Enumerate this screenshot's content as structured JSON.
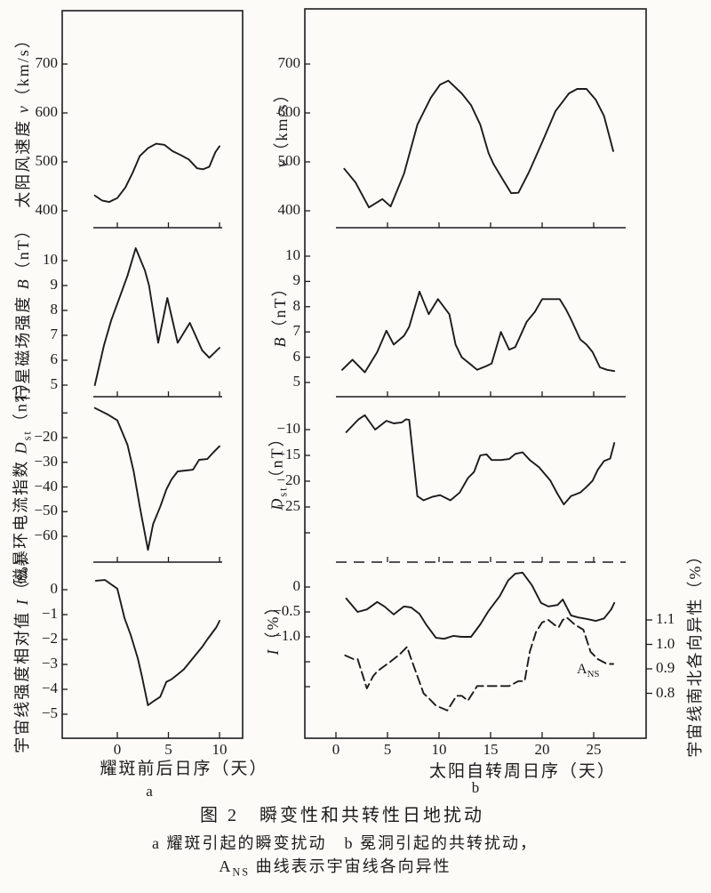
{
  "figure": {
    "ink": "#1b1b1b",
    "paper": "#fcfbf7",
    "caption": {
      "line1_parts": [
        {
          "text": "图 2　瞬变性和共转性日地扰动"
        }
      ],
      "line2_parts": [
        {
          "text": "a 耀斑引起的瞬变扰动　b 冕洞引起的共转扰动，"
        }
      ],
      "line3_parts": [
        {
          "text": "A"
        },
        {
          "text": "NS",
          "sub": true
        },
        {
          "text": " 曲线表示宇宙线各向异性"
        }
      ]
    }
  },
  "chart_data": [
    {
      "id": "a1",
      "type": "line",
      "ylabel_parts": [
        {
          "text": "太阳风速度 "
        },
        {
          "text": "v",
          "italic": true
        },
        {
          "text": "（km/s）"
        }
      ],
      "ytick_values": [
        400,
        500,
        600,
        700
      ],
      "ytick_labels": [
        "400",
        "500",
        "600",
        "700"
      ],
      "ylim": [
        370,
        800
      ],
      "xlim": [
        -3,
        11
      ],
      "grid": false,
      "series": [
        {
          "name": "solar-wind-speed",
          "style": "solid",
          "x": [
            -2.2,
            -1.5,
            -0.8,
            0,
            0.8,
            1.5,
            2.2,
            3,
            3.8,
            4.6,
            5.4,
            6.2,
            7,
            7.8,
            8.4,
            9,
            9.6,
            10
          ],
          "y": [
            431,
            421,
            418,
            426,
            448,
            478,
            512,
            528,
            537,
            535,
            522,
            514,
            505,
            487,
            485,
            490,
            520,
            532
          ]
        }
      ]
    },
    {
      "id": "a2",
      "type": "line",
      "ylabel_parts": [
        {
          "text": "行星磁场强度 "
        },
        {
          "text": "B",
          "italic": true
        },
        {
          "text": "（nT）"
        }
      ],
      "ytick_values": [
        5,
        6,
        7,
        8,
        9,
        10
      ],
      "ytick_labels": [
        "5",
        "6",
        "7",
        "8",
        "9",
        "10"
      ],
      "ylim": [
        4.3,
        11.3
      ],
      "xlim": [
        -3,
        11
      ],
      "grid": false,
      "series": [
        {
          "name": "imf-strength",
          "style": "solid",
          "x": [
            -2.2,
            -1.3,
            -0.6,
            0.3,
            1,
            1.8,
            2.7,
            3.1,
            4,
            4.9,
            5.9,
            7.1,
            8.3,
            9,
            10
          ],
          "y": [
            5.0,
            6.6,
            7.6,
            8.6,
            9.4,
            10.5,
            9.6,
            9.0,
            6.7,
            8.5,
            6.7,
            7.5,
            6.4,
            6.1,
            6.5
          ]
        }
      ]
    },
    {
      "id": "a3",
      "type": "line",
      "ylabel_parts": [
        {
          "text": "磁暴环电流指数 "
        },
        {
          "text": "D",
          "italic": true
        },
        {
          "text": "st",
          "sub": true
        },
        {
          "text": "（nT）"
        }
      ],
      "ytick_values": [
        -20,
        -30,
        -40,
        -50,
        -60
      ],
      "ytick_labels": [
        "−20",
        "−30",
        "−40",
        "−50",
        "−60"
      ],
      "yticks_unlabeled": [
        -10
      ],
      "ylim": [
        -70,
        -3
      ],
      "xlim": [
        -3,
        11
      ],
      "grid": false,
      "series": [
        {
          "name": "dst-index",
          "style": "solid",
          "x": [
            -2.2,
            -1,
            0,
            1,
            1.6,
            2.2,
            3,
            3.5,
            4.2,
            4.8,
            5.3,
            5.9,
            7.4,
            8,
            8.8,
            9.4,
            10
          ],
          "y": [
            -8,
            -10.5,
            -13,
            -23,
            -33.7,
            -48,
            -65.5,
            -55,
            -48,
            -41,
            -37,
            -33.7,
            -33,
            -29,
            -28.7,
            -26,
            -23.5
          ]
        }
      ]
    },
    {
      "id": "a4",
      "type": "line",
      "ylabel_parts": [
        {
          "text": "宇宙线强度相对值 "
        },
        {
          "text": "I",
          "italic": true
        },
        {
          "text": "（%）"
        }
      ],
      "ytick_values": [
        0,
        -1,
        -2,
        -3,
        -4,
        -5
      ],
      "ytick_labels": [
        "0",
        "−1",
        "−2",
        "−3",
        "−4",
        "−5"
      ],
      "ylim": [
        -6,
        1.1
      ],
      "xlim": [
        -3,
        11
      ],
      "grid": false,
      "xlabel": "耀斑前后日序（天）",
      "xtick_values": [
        0,
        5,
        10
      ],
      "xtick_labels": [
        "0",
        "5",
        "10"
      ],
      "panel_letter": "a",
      "series": [
        {
          "name": "cosmic-ray-intensity",
          "style": "solid",
          "x": [
            -2.1,
            -1.2,
            0,
            0.7,
            1.3,
            2,
            2.4,
            3,
            3.6,
            4.2,
            4.8,
            5.3,
            5.9,
            6.5,
            7.4,
            8.3,
            8.8,
            9.7,
            10
          ],
          "y": [
            0.36,
            0.39,
            0.04,
            -1.14,
            -1.8,
            -2.75,
            -3.46,
            -4.64,
            -4.46,
            -4.3,
            -3.7,
            -3.6,
            -3.4,
            -3.2,
            -2.75,
            -2.3,
            -2.0,
            -1.5,
            -1.25
          ]
        }
      ]
    },
    {
      "id": "b1",
      "type": "line",
      "ylabel_parts": [
        {
          "text": "v",
          "italic": true
        },
        {
          "text": "（km/s）"
        }
      ],
      "ytick_values": [
        400,
        500,
        600,
        700
      ],
      "ytick_labels": [
        "400",
        "500",
        "600",
        "700"
      ],
      "ylim": [
        370,
        810
      ],
      "xlim": [
        -1,
        29
      ],
      "grid": false,
      "series": [
        {
          "name": "solar-wind-speed",
          "style": "solid",
          "x": [
            0.8,
            1.9,
            3.2,
            4.5,
            5.3,
            6.6,
            7.9,
            9.2,
            10.1,
            10.9,
            12.2,
            13.1,
            14,
            14.8,
            15.3,
            16.1,
            17,
            17.7,
            18.7,
            20,
            21.3,
            22.6,
            23.4,
            24.3,
            25.2,
            26,
            26.9
          ],
          "y": [
            486,
            458,
            407,
            424,
            409,
            476,
            576,
            631,
            658,
            666,
            640,
            616,
            576,
            518,
            495,
            467,
            436,
            437,
            478,
            540,
            604,
            640,
            649,
            649,
            627,
            594,
            522
          ]
        }
      ]
    },
    {
      "id": "b2",
      "type": "line",
      "ylabel_parts": [
        {
          "text": "B",
          "italic": true
        },
        {
          "text": "（nT）"
        }
      ],
      "ytick_values": [
        5,
        6,
        7,
        8,
        9,
        10
      ],
      "ytick_labels": [
        "5",
        "6",
        "7",
        "8",
        "9",
        "10"
      ],
      "ylim": [
        4.3,
        11.3
      ],
      "xlim": [
        -1,
        29
      ],
      "grid": false,
      "series": [
        {
          "name": "imf-strength",
          "style": "solid",
          "x": [
            0.6,
            1.6,
            2.8,
            4,
            4.9,
            5.6,
            6.6,
            7.1,
            8.1,
            9,
            9.9,
            11,
            11.6,
            12.2,
            13.1,
            13.7,
            14.6,
            15.1,
            16,
            16.8,
            17.4,
            18.5,
            19.3,
            20,
            21.7,
            22.3,
            22.8,
            23.7,
            24.3,
            24.9,
            25.6,
            26.3,
            27
          ],
          "y": [
            5.5,
            5.9,
            5.4,
            6.2,
            7.05,
            6.5,
            6.85,
            7.2,
            8.6,
            7.7,
            8.3,
            7.7,
            6.5,
            6.0,
            5.7,
            5.5,
            5.65,
            5.75,
            7.0,
            6.3,
            6.4,
            7.4,
            7.8,
            8.3,
            8.3,
            7.9,
            7.5,
            6.7,
            6.5,
            6.2,
            5.6,
            5.5,
            5.45
          ]
        }
      ]
    },
    {
      "id": "b3",
      "type": "line",
      "ylabel_parts": [
        {
          "text": "D",
          "italic": true
        },
        {
          "text": "st",
          "sub": true
        },
        {
          "text": "（nT）"
        }
      ],
      "ytick_values": [
        -10,
        -15,
        -20,
        -25
      ],
      "ytick_labels": [
        "−10",
        "−15",
        "−20",
        "−25"
      ],
      "yticks_unlabeled": [
        -30
      ],
      "ylim": [
        -35,
        -4
      ],
      "xlim": [
        -1,
        29
      ],
      "grid": false,
      "series": [
        {
          "name": "dst-index",
          "style": "solid",
          "x": [
            1,
            2.2,
            2.8,
            3.8,
            4.9,
            5.6,
            6.4,
            6.8,
            7.1,
            7.9,
            8.5,
            9.4,
            10.1,
            11.1,
            12,
            12.8,
            13.4,
            14,
            14.6,
            15.1,
            16,
            16.8,
            17.4,
            18.1,
            18.8,
            19.7,
            20.8,
            21.5,
            22.1,
            22.8,
            23.7,
            24.3,
            24.9,
            25.4,
            26,
            26.6,
            27
          ],
          "y": [
            -10.5,
            -8,
            -7.2,
            -10,
            -8.3,
            -8.8,
            -8.6,
            -8,
            -8.1,
            -22.9,
            -23.7,
            -23,
            -22.7,
            -23.7,
            -22.2,
            -19.4,
            -18.2,
            -15,
            -14.8,
            -15.9,
            -15.9,
            -15.7,
            -14.7,
            -14.4,
            -15.9,
            -17.3,
            -19.9,
            -22.5,
            -24.5,
            -22.9,
            -22.2,
            -21.1,
            -19.9,
            -17.8,
            -16.1,
            -15.6,
            -12.6
          ]
        }
      ]
    },
    {
      "id": "b4",
      "type": "line",
      "ylabel_parts": [
        {
          "text": "I",
          "italic": true
        },
        {
          "text": "（%）"
        }
      ],
      "ytick_values": [
        0,
        -0.5,
        -1.0
      ],
      "ytick_labels": [
        "0",
        "−0.5",
        "−1.0"
      ],
      "yticks_unlabeled": [
        -1.5,
        -2.0
      ],
      "ylim": [
        -2.5,
        0.45
      ],
      "xlim": [
        -1,
        29
      ],
      "grid": false,
      "y2label_parts": [
        {
          "text": "宇宙线南北各向异性（%）"
        }
      ],
      "y2tick_values": [
        1.1,
        1.0,
        0.9,
        0.8
      ],
      "y2tick_labels": [
        "1.1",
        "1.0",
        "0.9",
        "0.8"
      ],
      "xlabel": "太阳自转周日序（天）",
      "xtick_values": [
        0,
        5,
        10,
        15,
        20,
        25
      ],
      "xtick_labels": [
        "0",
        "5",
        "10",
        "15",
        "20",
        "25"
      ],
      "panel_letter": "b",
      "series": [
        {
          "name": "cosmic-ray-intensity",
          "style": "solid",
          "x": [
            1,
            2.1,
            3,
            4,
            4.7,
            5.6,
            6.6,
            7.3,
            8.1,
            8.8,
            9.7,
            10.5,
            11.4,
            12.2,
            13.1,
            14,
            14.8,
            15.9,
            16.7,
            17.4,
            18.1,
            19,
            19.9,
            20.6,
            21.5,
            22,
            22.8,
            23.5,
            24.3,
            25.2,
            26,
            26.7,
            27
          ],
          "y": [
            -0.23,
            -0.5,
            -0.45,
            -0.3,
            -0.39,
            -0.55,
            -0.39,
            -0.41,
            -0.54,
            -0.77,
            -1.02,
            -1.04,
            -0.98,
            -1.0,
            -1.0,
            -0.75,
            -0.48,
            -0.18,
            0.13,
            0.27,
            0.29,
            0.04,
            -0.32,
            -0.39,
            -0.36,
            -0.25,
            -0.57,
            -0.61,
            -0.64,
            -0.68,
            -0.63,
            -0.45,
            -0.32
          ]
        },
        {
          "name": "north-south-anisotropy",
          "style": "dashed",
          "axis": "y2",
          "label_parts": [
            {
              "text": "A"
            },
            {
              "text": "NS",
              "sub": true
            }
          ],
          "x": [
            0.9,
            1.7,
            2.1,
            3,
            3.6,
            4,
            5.3,
            6.2,
            6.9,
            7.3,
            8.5,
            9,
            9.7,
            10.8,
            11.7,
            12.2,
            12.8,
            13.7,
            14.6,
            15.4,
            16.3,
            16.8,
            17.7,
            18.3,
            18.8,
            19.4,
            20,
            20.6,
            21.2,
            21.6,
            22,
            22.4,
            23.2,
            24,
            24.7,
            25.4,
            26.3,
            26.9
          ],
          "y": [
            0.955,
            0.94,
            0.94,
            0.82,
            0.87,
            0.89,
            0.93,
            0.96,
            0.99,
            0.94,
            0.8,
            0.78,
            0.75,
            0.73,
            0.79,
            0.79,
            0.77,
            0.83,
            0.83,
            0.83,
            0.83,
            0.83,
            0.85,
            0.85,
            0.97,
            1.05,
            1.09,
            1.1,
            1.08,
            1.07,
            1.1,
            1.11,
            1.08,
            1.06,
            0.97,
            0.94,
            0.92,
            0.92
          ]
        }
      ]
    }
  ]
}
